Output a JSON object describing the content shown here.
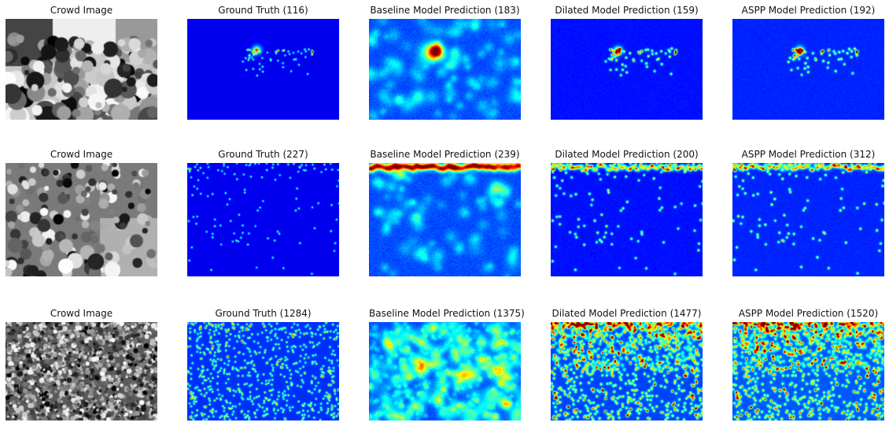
{
  "rows": [
    {
      "panels": [
        {
          "title": "Crowd Image",
          "kind": "crowd-photo"
        },
        {
          "title": "Ground Truth (116)",
          "kind": "ground-truth-density"
        },
        {
          "title": "Baseline Model Prediction (183)",
          "kind": "baseline-density"
        },
        {
          "title": "Dilated Model Prediction (159)",
          "kind": "dilated-density"
        },
        {
          "title": "ASPP Model Prediction (192)",
          "kind": "aspp-density"
        }
      ]
    },
    {
      "panels": [
        {
          "title": "Crowd Image",
          "kind": "crowd-photo"
        },
        {
          "title": "Ground Truth (227)",
          "kind": "ground-truth-density"
        },
        {
          "title": "Baseline Model Prediction (239)",
          "kind": "baseline-density"
        },
        {
          "title": "Dilated Model Prediction (200)",
          "kind": "dilated-density"
        },
        {
          "title": "ASPP Model Prediction (312)",
          "kind": "aspp-density"
        }
      ]
    },
    {
      "panels": [
        {
          "title": "Crowd Image",
          "kind": "crowd-photo"
        },
        {
          "title": "Ground Truth (1284)",
          "kind": "ground-truth-density"
        },
        {
          "title": "Baseline Model Prediction (1375)",
          "kind": "baseline-density"
        },
        {
          "title": "Dilated Model Prediction (1477)",
          "kind": "dilated-density"
        },
        {
          "title": "ASPP Model Prediction (1520)",
          "kind": "aspp-density"
        }
      ]
    }
  ],
  "colors": {
    "background": "#ffffff",
    "title_text": "#111111",
    "colormap": "jet"
  }
}
